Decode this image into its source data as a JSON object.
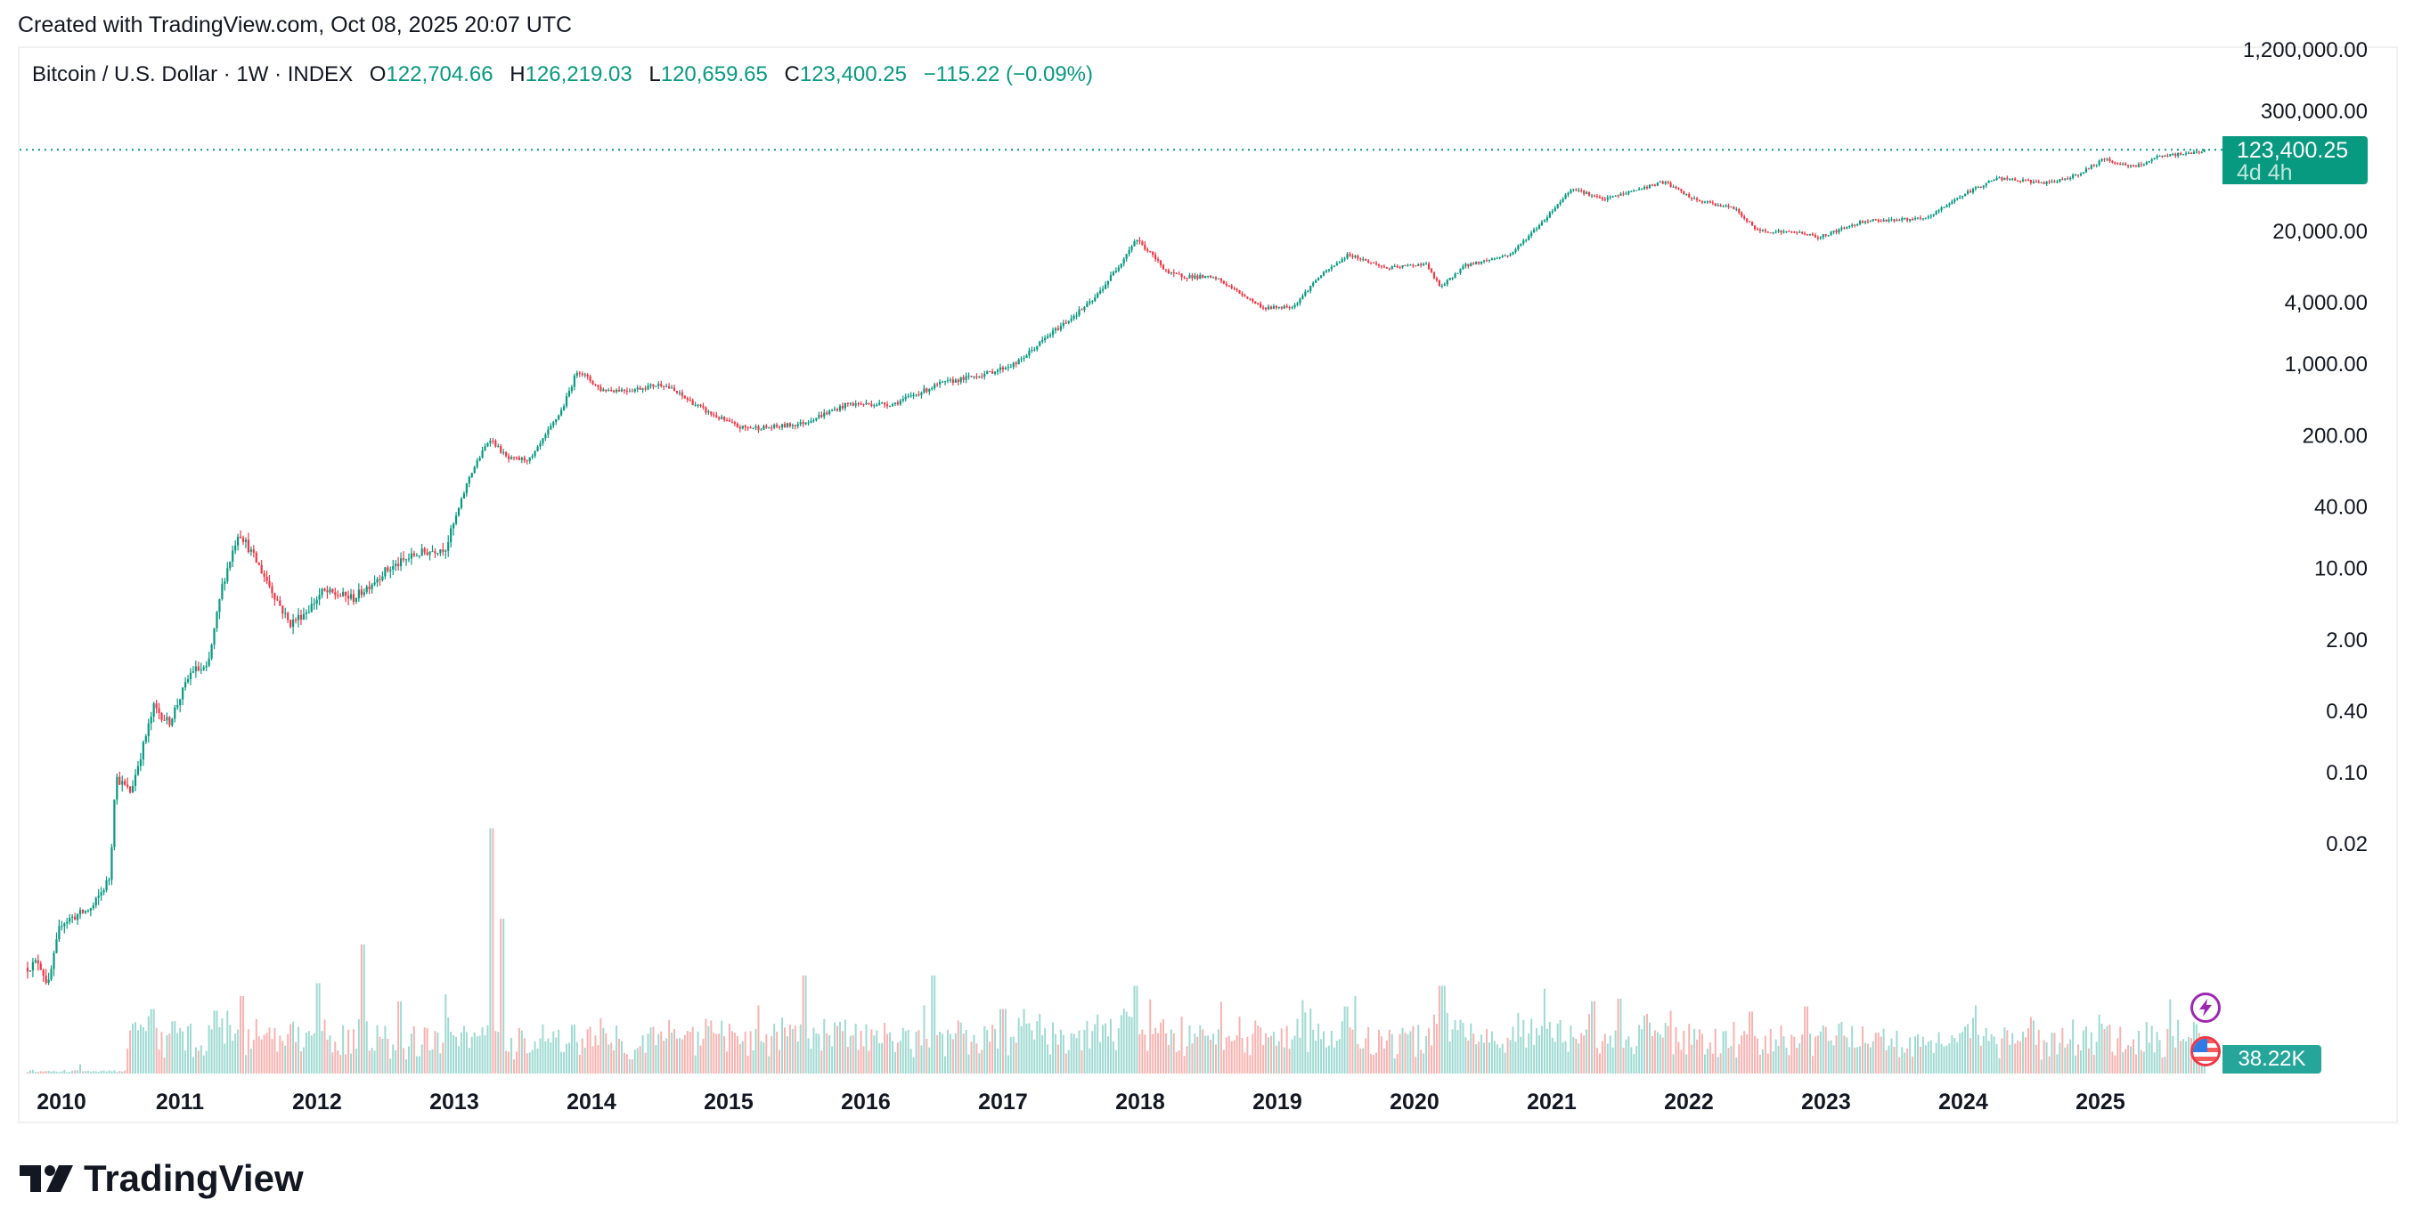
{
  "created_text": "Created with TradingView.com, Oct 08, 2025 20:07 UTC",
  "legend": {
    "symbol": "Bitcoin / U.S. Dollar · 1W · INDEX",
    "o_label": "O",
    "open": "122,704.66",
    "h_label": "H",
    "high": "126,219.03",
    "l_label": "L",
    "low": "120,659.65",
    "c_label": "C",
    "close": "123,400.25",
    "change": "−115.22 (−0.09%)"
  },
  "price_label": {
    "value": "123,400.25",
    "countdown": "4d 4h"
  },
  "volume_label": "38.22K",
  "brand": "TradingView",
  "colors": {
    "up": "#089981",
    "down": "#f23645",
    "vol_up": "#9fdad2",
    "vol_down": "#f8b3b1"
  },
  "chart_data": {
    "type": "candlestick",
    "title": "Bitcoin / U.S. Dollar · 1W · INDEX",
    "scale": "log",
    "interval": "1W",
    "ylim": [
      0.00065,
      1500000
    ],
    "y_ticks": [
      {
        "value": 1200000,
        "label": "1,200,000.00"
      },
      {
        "value": 300000,
        "label": "300,000.00"
      },
      {
        "value": 20000,
        "label": "20,000.00"
      },
      {
        "value": 4000,
        "label": "4,000.00"
      },
      {
        "value": 1000,
        "label": "1,000.00"
      },
      {
        "value": 200,
        "label": "200.00"
      },
      {
        "value": 40,
        "label": "40.00"
      },
      {
        "value": 10,
        "label": "10.00"
      },
      {
        "value": 2,
        "label": "2.00"
      },
      {
        "value": 0.4,
        "label": "0.40"
      },
      {
        "value": 0.1,
        "label": "0.10"
      },
      {
        "value": 0.02,
        "label": "0.02"
      }
    ],
    "x_ticks": [
      "2010",
      "2011",
      "2012",
      "2013",
      "2014",
      "2015",
      "2016",
      "2017",
      "2018",
      "2019",
      "2020",
      "2021",
      "2022",
      "2023",
      "2024",
      "2025"
    ],
    "last_price": 123400.25,
    "price_path": [
      [
        2009.89,
        0.0012
      ],
      [
        2009.97,
        0.0014
      ],
      [
        2010.04,
        0.0008
      ],
      [
        2010.13,
        0.0033
      ],
      [
        2010.36,
        0.0046
      ],
      [
        2010.49,
        0.0093
      ],
      [
        2010.53,
        0.09
      ],
      [
        2010.64,
        0.063
      ],
      [
        2010.81,
        0.43
      ],
      [
        2010.92,
        0.3
      ],
      [
        2011.09,
        1.0
      ],
      [
        2011.2,
        1.0
      ],
      [
        2011.31,
        6.8
      ],
      [
        2011.43,
        23
      ],
      [
        2011.54,
        12.6
      ],
      [
        2011.65,
        6.8
      ],
      [
        2011.8,
        2.8
      ],
      [
        2011.93,
        3.8
      ],
      [
        2012.04,
        5.8
      ],
      [
        2012.27,
        5.0
      ],
      [
        2012.49,
        9.1
      ],
      [
        2012.72,
        13.5
      ],
      [
        2012.94,
        15.8
      ],
      [
        2013.11,
        78
      ],
      [
        2013.26,
        186
      ],
      [
        2013.39,
        115
      ],
      [
        2013.56,
        115
      ],
      [
        2013.79,
        363
      ],
      [
        2013.9,
        870
      ],
      [
        2014.07,
        550
      ],
      [
        2014.29,
        550
      ],
      [
        2014.52,
        630
      ],
      [
        2014.85,
        330
      ],
      [
        2015.08,
        235
      ],
      [
        2015.3,
        235
      ],
      [
        2015.53,
        257
      ],
      [
        2015.87,
        400
      ],
      [
        2016.2,
        400
      ],
      [
        2016.54,
        630
      ],
      [
        2016.88,
        794
      ],
      [
        2017.1,
        1000
      ],
      [
        2017.33,
        1860
      ],
      [
        2017.66,
        4170
      ],
      [
        2017.83,
        8500
      ],
      [
        2017.97,
        16600
      ],
      [
        2018.22,
        7400
      ],
      [
        2018.56,
        6760
      ],
      [
        2018.9,
        3470
      ],
      [
        2019.12,
        3630
      ],
      [
        2019.29,
        6760
      ],
      [
        2019.52,
        11700
      ],
      [
        2019.8,
        8500
      ],
      [
        2020.08,
        9500
      ],
      [
        2020.19,
        5500
      ],
      [
        2020.36,
        9000
      ],
      [
        2020.7,
        11700
      ],
      [
        2020.92,
        23400
      ],
      [
        2021.15,
        52500
      ],
      [
        2021.37,
        40000
      ],
      [
        2021.82,
        60000
      ],
      [
        2022.04,
        40000
      ],
      [
        2022.33,
        33000
      ],
      [
        2022.5,
        20000
      ],
      [
        2022.83,
        19000
      ],
      [
        2022.94,
        17000
      ],
      [
        2023.28,
        25000
      ],
      [
        2023.73,
        26000
      ],
      [
        2023.96,
        42000
      ],
      [
        2024.24,
        65000
      ],
      [
        2024.63,
        58000
      ],
      [
        2024.85,
        72000
      ],
      [
        2025.02,
        100000
      ],
      [
        2025.25,
        83000
      ],
      [
        2025.42,
        105000
      ],
      [
        2025.7,
        117000
      ],
      [
        2025.77,
        123400.25
      ]
    ],
    "volume_spikes": [
      [
        2010.8,
        0.25
      ],
      [
        2011.45,
        0.3
      ],
      [
        2012.0,
        0.35
      ],
      [
        2012.33,
        0.5
      ],
      [
        2012.6,
        0.28
      ],
      [
        2013.28,
        0.95
      ],
      [
        2013.35,
        0.6
      ],
      [
        2015.55,
        0.38
      ],
      [
        2016.5,
        0.38
      ],
      [
        2017.0,
        0.25
      ],
      [
        2017.97,
        0.34
      ],
      [
        2019.5,
        0.26
      ],
      [
        2020.2,
        0.34
      ],
      [
        2021.3,
        0.28
      ],
      [
        2021.5,
        0.29
      ],
      [
        2022.45,
        0.24
      ],
      [
        2022.85,
        0.26
      ],
      [
        2024.1,
        0.15
      ]
    ],
    "x_label": "",
    "y_label": ""
  }
}
